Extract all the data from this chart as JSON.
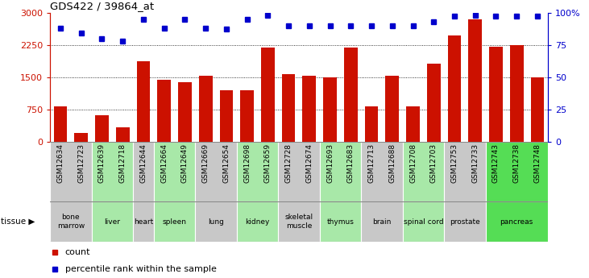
{
  "title": "GDS422 / 39864_at",
  "samples": [
    "GSM12634",
    "GSM12723",
    "GSM12639",
    "GSM12718",
    "GSM12644",
    "GSM12664",
    "GSM12649",
    "GSM12669",
    "GSM12654",
    "GSM12698",
    "GSM12659",
    "GSM12728",
    "GSM12674",
    "GSM12693",
    "GSM12683",
    "GSM12713",
    "GSM12688",
    "GSM12708",
    "GSM12703",
    "GSM12753",
    "GSM12733",
    "GSM12743",
    "GSM12738",
    "GSM12748"
  ],
  "counts": [
    820,
    200,
    620,
    330,
    1870,
    1430,
    1390,
    1530,
    1200,
    1200,
    2180,
    1570,
    1540,
    1500,
    2190,
    820,
    1540,
    820,
    1810,
    2460,
    2840,
    2200,
    2250,
    1490
  ],
  "percentiles": [
    88,
    84,
    80,
    78,
    95,
    88,
    95,
    88,
    87,
    95,
    98,
    90,
    90,
    90,
    90,
    90,
    90,
    90,
    93,
    97,
    98,
    97,
    97,
    97
  ],
  "tissues": [
    {
      "name": "bone\nmarrow",
      "start": 0,
      "end": 2,
      "color": "#c8c8c8"
    },
    {
      "name": "liver",
      "start": 2,
      "end": 4,
      "color": "#a8e8a8"
    },
    {
      "name": "heart",
      "start": 4,
      "end": 5,
      "color": "#c8c8c8"
    },
    {
      "name": "spleen",
      "start": 5,
      "end": 7,
      "color": "#a8e8a8"
    },
    {
      "name": "lung",
      "start": 7,
      "end": 9,
      "color": "#c8c8c8"
    },
    {
      "name": "kidney",
      "start": 9,
      "end": 11,
      "color": "#a8e8a8"
    },
    {
      "name": "skeletal\nmuscle",
      "start": 11,
      "end": 13,
      "color": "#c8c8c8"
    },
    {
      "name": "thymus",
      "start": 13,
      "end": 15,
      "color": "#a8e8a8"
    },
    {
      "name": "brain",
      "start": 15,
      "end": 17,
      "color": "#c8c8c8"
    },
    {
      "name": "spinal cord",
      "start": 17,
      "end": 19,
      "color": "#a8e8a8"
    },
    {
      "name": "prostate",
      "start": 19,
      "end": 21,
      "color": "#c8c8c8"
    },
    {
      "name": "pancreas",
      "start": 21,
      "end": 24,
      "color": "#55dd55"
    }
  ],
  "bar_color": "#cc1100",
  "dot_color": "#0000cc",
  "ylim_left": [
    0,
    3000
  ],
  "ylim_right": [
    0,
    100
  ],
  "yticks_left": [
    0,
    750,
    1500,
    2250,
    3000
  ],
  "yticks_right": [
    0,
    25,
    50,
    75,
    100
  ],
  "xtick_bg": "#d8d8d8",
  "tissue_border": "#888888"
}
